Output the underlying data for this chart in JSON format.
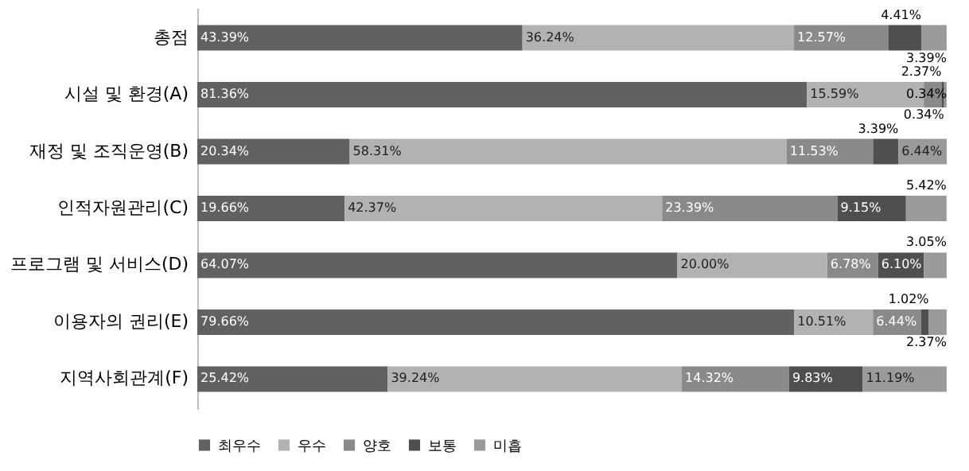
{
  "chart_data": {
    "type": "bar",
    "orientation": "horizontal",
    "stacked": true,
    "legend": "bottom",
    "categories": [
      "총점",
      "시설 및 환경(A)",
      "재정 및 조직운영(B)",
      "인적자원관리(C)",
      "프로그램 및 서비스(D)",
      "이용자의 권리(E)",
      "지역사회관계(F)"
    ],
    "series": [
      {
        "name": "최우수",
        "color": "#616161",
        "values": [
          43.39,
          81.36,
          20.34,
          19.66,
          64.07,
          79.66,
          25.42
        ],
        "value_labels": [
          "43.39%",
          "81.36%",
          "20.34%",
          "19.66%",
          "64.07%",
          "79.66%",
          "25.42%"
        ]
      },
      {
        "name": "우수",
        "color": "#b2b2b2",
        "values": [
          36.24,
          15.59,
          58.31,
          42.37,
          20.0,
          10.51,
          39.24
        ],
        "value_labels": [
          "36.24%",
          "15.59%",
          "58.31%",
          "42.37%",
          "20.00%",
          "10.51%",
          "39.24%"
        ]
      },
      {
        "name": "양호",
        "color": "#8a8a8a",
        "values": [
          12.57,
          2.37,
          11.53,
          23.39,
          6.78,
          6.44,
          14.32
        ],
        "value_labels": [
          "12.57%",
          "2.37%",
          "11.53%",
          "23.39%",
          "6.78%",
          "6.44%",
          "14.32%"
        ]
      },
      {
        "name": "보통",
        "color": "#4f4f4f",
        "values": [
          4.41,
          0.34,
          3.39,
          9.15,
          6.1,
          1.02,
          9.83
        ],
        "value_labels": [
          "4.41%",
          "0.34%",
          "3.39%",
          "9.15%",
          "6.10%",
          "1.02%",
          "9.83%"
        ]
      },
      {
        "name": "미흡",
        "color": "#9a9a9a",
        "values": [
          3.39,
          0.34,
          6.44,
          5.42,
          3.05,
          2.37,
          11.19
        ],
        "value_labels": [
          "3.39%",
          "0.34%",
          "6.44%",
          "5.42%",
          "3.05%",
          "2.37%",
          "11.19%"
        ]
      }
    ]
  }
}
